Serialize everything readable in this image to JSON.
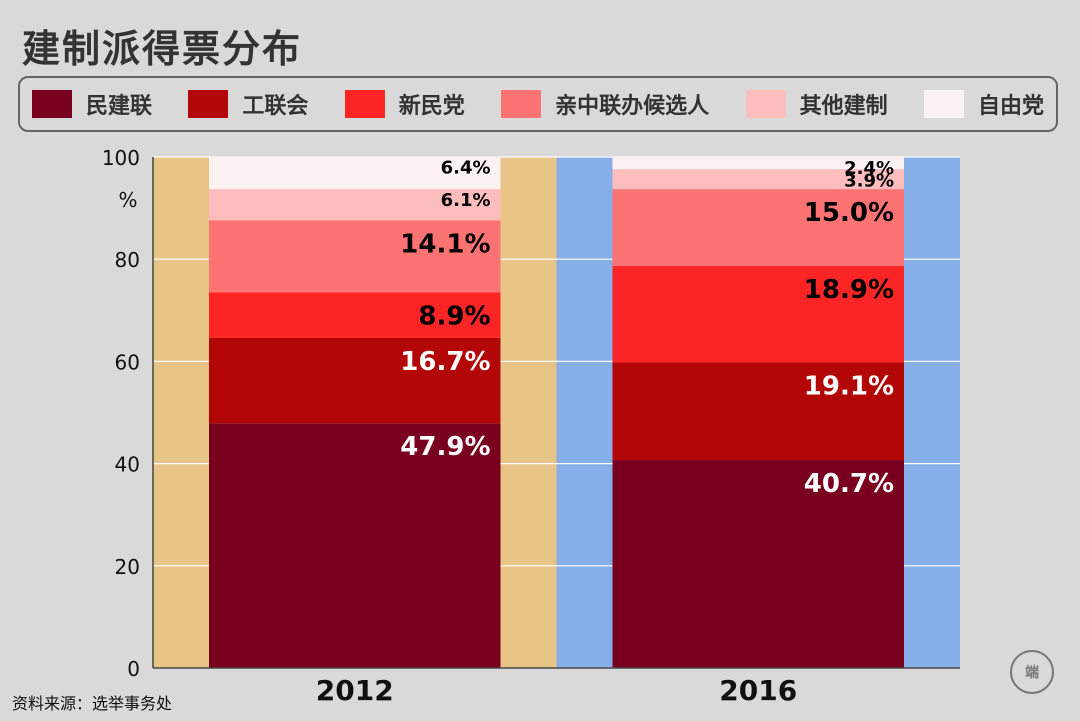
{
  "chart_data": {
    "type": "bar",
    "stacked": true,
    "title": "建制派得票分布",
    "categories": [
      "2012",
      "2016"
    ],
    "ylim": [
      0,
      100
    ],
    "yticks": [
      "0",
      "20",
      "40",
      "60",
      "80",
      "100"
    ],
    "yunit": "%",
    "grid": true,
    "legend_position": "top",
    "series": [
      {
        "name": "民建联",
        "color": "#7a0020",
        "values": [
          47.9,
          40.7
        ],
        "labels": [
          "47.9%",
          "40.7%"
        ]
      },
      {
        "name": "工联会",
        "color": "#b30707",
        "values": [
          16.7,
          19.1
        ],
        "labels": [
          "16.7%",
          "19.1%"
        ]
      },
      {
        "name": "新民党",
        "color": "#fb2525",
        "values": [
          8.9,
          18.9
        ],
        "labels": [
          "8.9%",
          "18.9%"
        ]
      },
      {
        "name": "亲中联办候选人",
        "color": "#fd7373",
        "values": [
          14.1,
          15.0
        ],
        "labels": [
          "14.1%",
          "15.0%"
        ]
      },
      {
        "name": "其他建制",
        "color": "#fdbdbd",
        "values": [
          6.1,
          3.9
        ],
        "labels": [
          "6.1%",
          "3.9%"
        ]
      },
      {
        "name": "自由党",
        "color": "#fdf2f2",
        "values": [
          6.4,
          2.4
        ],
        "labels": [
          "6.4%",
          "2.4%"
        ]
      }
    ],
    "panel_colors": [
      "#e8c487",
      "#86aee8"
    ]
  },
  "source": "资料来源：选举事务处",
  "logo_text": "端"
}
